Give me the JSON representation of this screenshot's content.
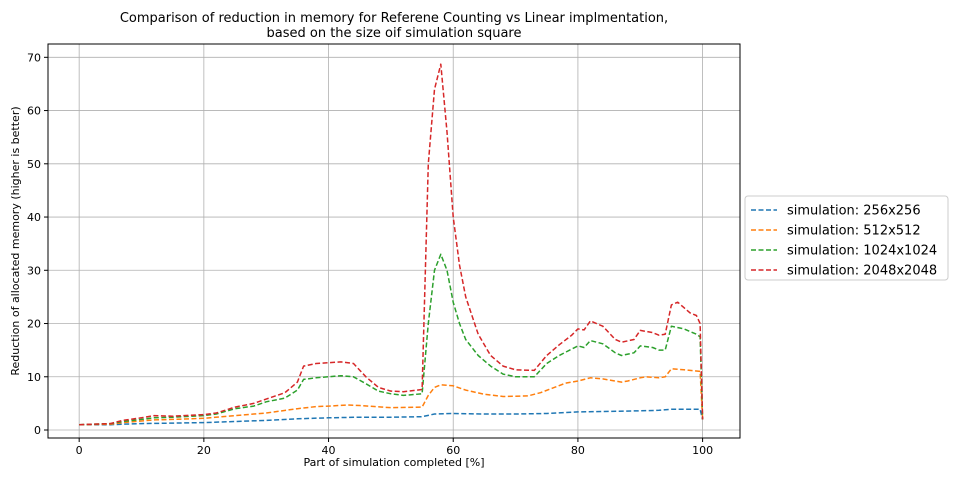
{
  "chart_data": {
    "type": "line",
    "title_line1": "Comparison of reduction in memory for Referene Counting vs Linear implmentation,",
    "title_line2": "based on the size oif simulation square",
    "xlabel": "Part of simulation completed [%]",
    "ylabel": "Reduction of allocated memory (higher is better)",
    "xlim": [
      -5,
      106
    ],
    "ylim": [
      -1.5,
      72.5
    ],
    "xticks": [
      0,
      20,
      40,
      60,
      80,
      100
    ],
    "yticks": [
      0,
      10,
      20,
      30,
      40,
      50,
      60,
      70
    ],
    "grid": true,
    "legend_position": "outside-right",
    "line_style": "dashed",
    "series": [
      {
        "name": "simulation: 256x256",
        "color": "#1f77b4",
        "points": [
          [
            0,
            1
          ],
          [
            5,
            1
          ],
          [
            7,
            1.1
          ],
          [
            10,
            1.2
          ],
          [
            15,
            1.3
          ],
          [
            20,
            1.4
          ],
          [
            25,
            1.6
          ],
          [
            30,
            1.8
          ],
          [
            35,
            2.1
          ],
          [
            40,
            2.3
          ],
          [
            45,
            2.4
          ],
          [
            50,
            2.4
          ],
          [
            55,
            2.5
          ],
          [
            57,
            3
          ],
          [
            60,
            3.1
          ],
          [
            65,
            3
          ],
          [
            70,
            3.0
          ],
          [
            75,
            3.1
          ],
          [
            80,
            3.4
          ],
          [
            85,
            3.5
          ],
          [
            90,
            3.6
          ],
          [
            93,
            3.7
          ],
          [
            95,
            3.9
          ],
          [
            99.6,
            3.9
          ],
          [
            100,
            2
          ]
        ]
      },
      {
        "name": "simulation: 512x512",
        "color": "#ff7f0e",
        "points": [
          [
            0,
            1
          ],
          [
            5,
            1.1
          ],
          [
            7,
            1.4
          ],
          [
            10,
            1.7
          ],
          [
            12,
            1.9
          ],
          [
            15,
            2
          ],
          [
            20,
            2.2
          ],
          [
            25,
            2.7
          ],
          [
            30,
            3.2
          ],
          [
            35,
            4
          ],
          [
            38,
            4.4
          ],
          [
            40,
            4.5
          ],
          [
            43,
            4.7
          ],
          [
            45,
            4.6
          ],
          [
            50,
            4.2
          ],
          [
            55,
            4.3
          ],
          [
            56,
            6.5
          ],
          [
            57,
            8
          ],
          [
            58,
            8.5
          ],
          [
            60,
            8.3
          ],
          [
            62,
            7.5
          ],
          [
            65,
            6.7
          ],
          [
            68,
            6.3
          ],
          [
            72,
            6.4
          ],
          [
            74,
            7
          ],
          [
            78,
            8.8
          ],
          [
            80,
            9.2
          ],
          [
            82,
            9.8
          ],
          [
            84,
            9.6
          ],
          [
            87,
            9
          ],
          [
            88,
            9.2
          ],
          [
            90,
            9.8
          ],
          [
            91,
            10
          ],
          [
            93,
            9.8
          ],
          [
            94,
            10
          ],
          [
            95,
            11.5
          ],
          [
            97,
            11.3
          ],
          [
            99.6,
            11
          ],
          [
            100,
            2
          ]
        ]
      },
      {
        "name": "simulation: 1024x1024",
        "color": "#2ca02c",
        "points": [
          [
            0,
            1
          ],
          [
            5,
            1.2
          ],
          [
            7,
            1.6
          ],
          [
            10,
            2
          ],
          [
            12,
            2.3
          ],
          [
            15,
            2.4
          ],
          [
            20,
            2.7
          ],
          [
            22,
            3
          ],
          [
            25,
            4
          ],
          [
            28,
            4.5
          ],
          [
            30,
            5.3
          ],
          [
            33,
            6
          ],
          [
            35,
            7.5
          ],
          [
            36,
            9.5
          ],
          [
            38,
            9.8
          ],
          [
            42,
            10.2
          ],
          [
            44,
            10
          ],
          [
            46,
            8.7
          ],
          [
            48,
            7.3
          ],
          [
            50,
            6.8
          ],
          [
            52,
            6.5
          ],
          [
            55,
            6.8
          ],
          [
            56,
            20
          ],
          [
            57,
            30
          ],
          [
            58,
            33
          ],
          [
            59,
            30
          ],
          [
            60,
            24
          ],
          [
            61,
            20
          ],
          [
            62,
            17
          ],
          [
            64,
            14
          ],
          [
            66,
            12
          ],
          [
            68,
            10.5
          ],
          [
            70,
            10
          ],
          [
            73,
            10
          ],
          [
            75,
            12.5
          ],
          [
            77,
            14
          ],
          [
            79,
            15.2
          ],
          [
            80,
            15.8
          ],
          [
            81,
            15.5
          ],
          [
            82,
            16.8
          ],
          [
            84,
            16.2
          ],
          [
            86,
            14.5
          ],
          [
            87,
            14
          ],
          [
            89,
            14.5
          ],
          [
            90,
            15.8
          ],
          [
            92,
            15.5
          ],
          [
            93,
            15
          ],
          [
            94,
            15
          ],
          [
            95,
            19.5
          ],
          [
            97,
            19
          ],
          [
            99,
            18
          ],
          [
            99.6,
            17.5
          ],
          [
            100,
            2
          ]
        ]
      },
      {
        "name": "simulation: 2048x2048",
        "color": "#d62728",
        "points": [
          [
            0,
            1
          ],
          [
            5,
            1.2
          ],
          [
            7,
            1.8
          ],
          [
            10,
            2.3
          ],
          [
            12,
            2.7
          ],
          [
            15,
            2.6
          ],
          [
            20,
            2.9
          ],
          [
            22,
            3.2
          ],
          [
            25,
            4.3
          ],
          [
            28,
            5
          ],
          [
            30,
            5.8
          ],
          [
            33,
            7
          ],
          [
            35,
            9
          ],
          [
            36,
            12
          ],
          [
            38,
            12.5
          ],
          [
            42,
            12.8
          ],
          [
            44,
            12.5
          ],
          [
            46,
            10
          ],
          [
            48,
            8
          ],
          [
            50,
            7.3
          ],
          [
            52,
            7.2
          ],
          [
            55,
            7.6
          ],
          [
            56,
            50
          ],
          [
            57,
            64
          ],
          [
            58,
            68.7
          ],
          [
            59,
            56
          ],
          [
            60,
            40
          ],
          [
            61,
            31
          ],
          [
            62,
            25
          ],
          [
            64,
            18
          ],
          [
            66,
            14
          ],
          [
            68,
            12
          ],
          [
            70,
            11.3
          ],
          [
            73,
            11.2
          ],
          [
            75,
            14
          ],
          [
            77,
            16
          ],
          [
            79,
            17.8
          ],
          [
            80,
            19
          ],
          [
            81,
            18.8
          ],
          [
            82,
            20.5
          ],
          [
            84,
            19.5
          ],
          [
            86,
            17
          ],
          [
            87,
            16.5
          ],
          [
            89,
            17
          ],
          [
            90,
            18.7
          ],
          [
            92,
            18.3
          ],
          [
            93,
            17.8
          ],
          [
            94,
            18
          ],
          [
            95,
            23.5
          ],
          [
            96,
            24
          ],
          [
            97,
            23
          ],
          [
            98,
            22
          ],
          [
            99,
            21.5
          ],
          [
            99.6,
            20
          ],
          [
            100,
            2
          ]
        ]
      }
    ]
  }
}
